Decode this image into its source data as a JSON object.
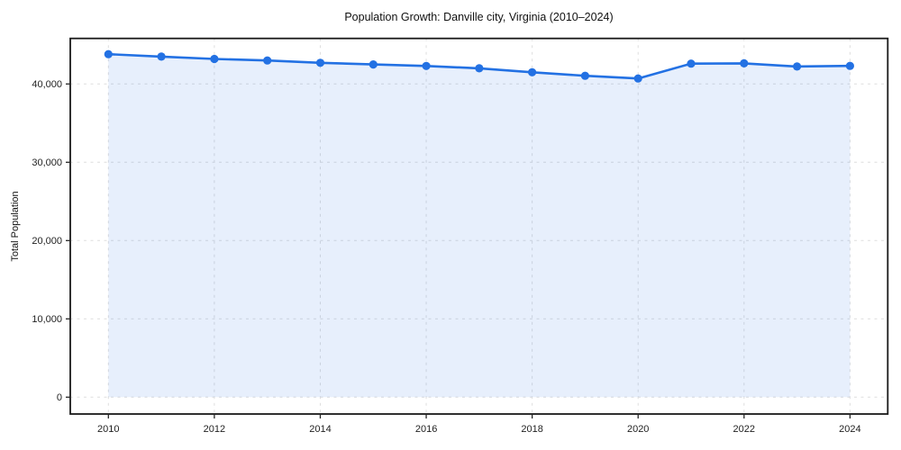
{
  "chart_data": {
    "type": "area",
    "title": "Population Growth: Danville city, Virginia (2010–2024)",
    "xlabel": "",
    "ylabel": "Total Population",
    "x": [
      2010,
      2011,
      2012,
      2013,
      2014,
      2015,
      2016,
      2017,
      2018,
      2019,
      2020,
      2021,
      2022,
      2023,
      2024
    ],
    "values": [
      43800,
      43500,
      43200,
      43000,
      42700,
      42500,
      42300,
      42000,
      41500,
      41050,
      40700,
      42600,
      42630,
      42230,
      42310
    ],
    "series_name": "Total Population",
    "xticks": [
      2010,
      2012,
      2014,
      2016,
      2018,
      2020,
      2022,
      2024
    ],
    "yticks": [
      0,
      10000,
      20000,
      30000,
      40000
    ],
    "ylim": [
      -2150,
      45800
    ],
    "xlim": [
      2009.3,
      2024.7
    ],
    "grid": true,
    "legend": false,
    "line_color": "#2371e3",
    "marker_color": "#2371e3",
    "fill_color": "rgba(35, 113, 227, 0.11)",
    "background_color": "#ffffff"
  }
}
